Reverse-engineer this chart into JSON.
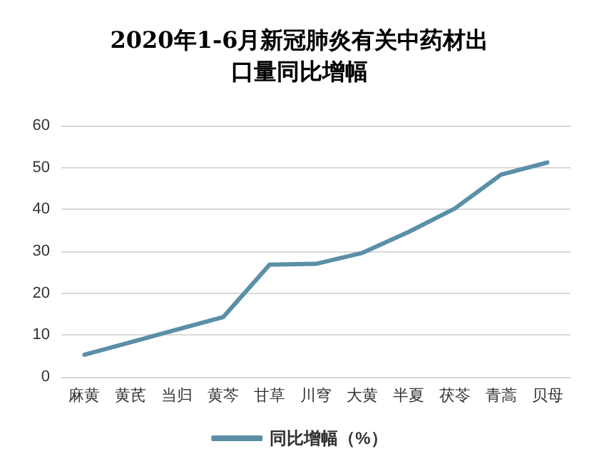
{
  "chart_data": {
    "type": "line",
    "title": "2020年1-6月新冠肺炎有关中药材出口量同比增幅",
    "categories": [
      "麻黄",
      "黄芪",
      "当归",
      "黄芩",
      "甘草",
      "川穹",
      "大黄",
      "半夏",
      "茯苓",
      "青蒿",
      "贝母"
    ],
    "series": [
      {
        "name": "同比增幅（%）",
        "color": "#5b8fa8",
        "values": [
          5.3,
          8.3,
          11.3,
          14.3,
          26.8,
          27,
          29.6,
          34.6,
          40.2,
          48.3,
          51.2
        ]
      }
    ],
    "ylim": [
      0,
      60
    ],
    "yticks": [
      0,
      10,
      20,
      30,
      40,
      50,
      60
    ],
    "grid": "y",
    "legend": "bottom",
    "marker": "none"
  }
}
